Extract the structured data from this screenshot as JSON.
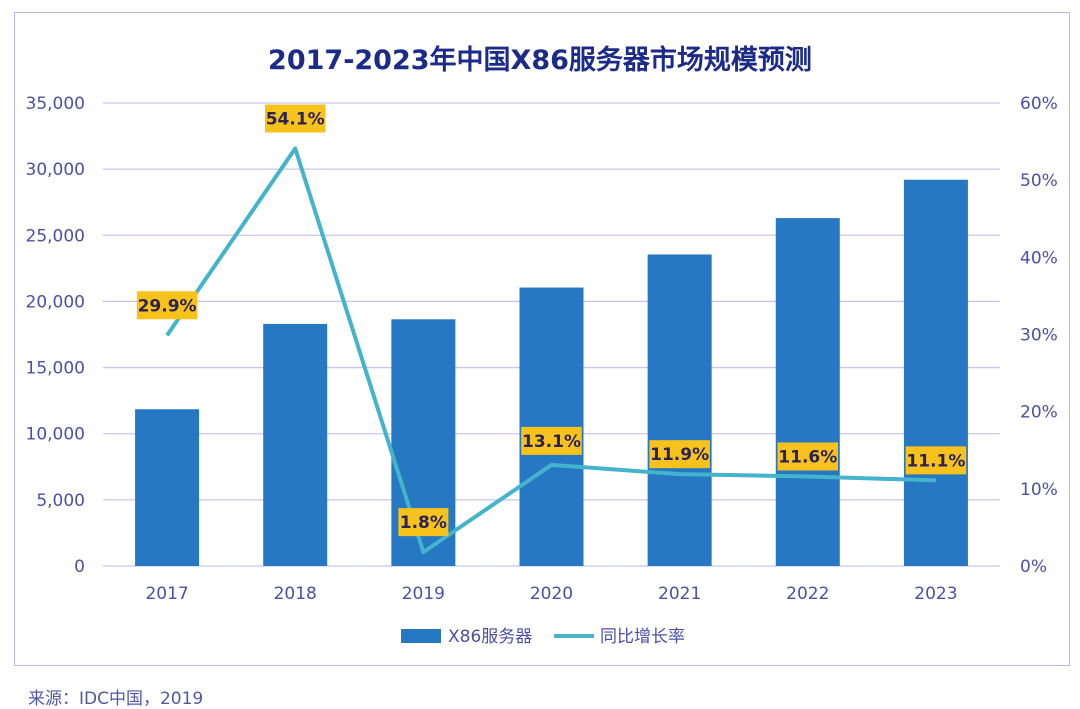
{
  "colors": {
    "bar": "#2678c2",
    "line": "#43b4cc",
    "label_bg": "#f8c21c",
    "label_text": "#2b2257",
    "axis_text": "#4c4fa6",
    "grid": "#c8c6ee",
    "title": "#1c2a8a"
  },
  "chart_data": {
    "type": "bar",
    "title": "2017-2023年中国X86服务器市场规模预测",
    "categories": [
      "2017",
      "2018",
      "2019",
      "2020",
      "2021",
      "2022",
      "2023"
    ],
    "series": [
      {
        "name": "X86服务器",
        "type": "bar",
        "axis": "left",
        "values": [
          11850,
          18300,
          18650,
          21050,
          23550,
          26300,
          29200
        ]
      },
      {
        "name": "同比增长率",
        "type": "line",
        "axis": "right",
        "values": [
          29.9,
          54.1,
          1.8,
          13.1,
          11.9,
          11.6,
          11.1
        ],
        "labels": [
          "29.9%",
          "54.1%",
          "1.8%",
          "13.1%",
          "11.9%",
          "11.6%",
          "11.1%"
        ]
      }
    ],
    "y_left": {
      "ylim": [
        0,
        35000
      ],
      "ticks": [
        0,
        5000,
        10000,
        15000,
        20000,
        25000,
        30000,
        35000
      ],
      "tick_labels": [
        "0",
        "5,000",
        "10,000",
        "15,000",
        "20,000",
        "25,000",
        "30,000",
        "35,000"
      ]
    },
    "y_right": {
      "ylim": [
        0,
        60
      ],
      "ticks": [
        0,
        10,
        20,
        30,
        40,
        50,
        60
      ],
      "tick_labels": [
        "0%",
        "10%",
        "20%",
        "30%",
        "40%",
        "50%",
        "60%"
      ]
    },
    "grid": true,
    "legend_position": "bottom-center"
  },
  "source": "来源：IDC中国，2019"
}
